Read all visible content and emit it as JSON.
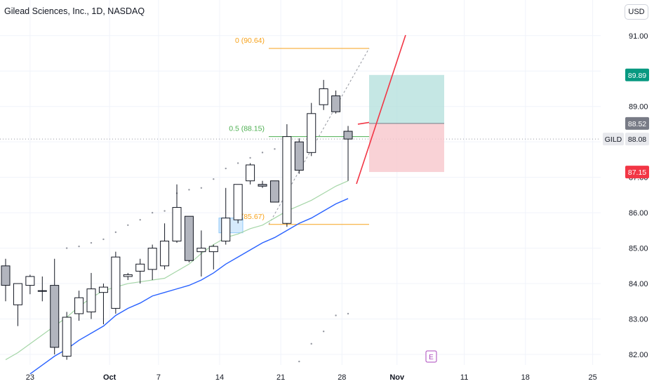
{
  "header": {
    "title": "Gilead Sciences, Inc., 1D, NASDAQ",
    "currency": "USD"
  },
  "price_tags": [
    {
      "id": "target",
      "label": "89.89",
      "bg": "#089981",
      "fg": "#ffffff"
    },
    {
      "id": "entry",
      "label": "88.52",
      "bg": "#787b86",
      "fg": "#ffffff"
    },
    {
      "id": "symbol",
      "label": "GILD",
      "bg": "#e8e9ed",
      "fg": "#131722"
    },
    {
      "id": "last",
      "label": "88.08",
      "bg": "#e8e9ed",
      "fg": "#131722"
    },
    {
      "id": "stop",
      "label": "87.15",
      "bg": "#f23645",
      "fg": "#ffffff"
    }
  ],
  "event_marker": "E",
  "chart_data": {
    "type": "candlestick",
    "ylim": [
      81.75,
      91.15
    ],
    "y_ticks": [
      "82.00",
      "83.00",
      "84.00",
      "85.00",
      "86.00",
      "87.00",
      "88.00",
      "89.00",
      "89.89",
      "91.00"
    ],
    "x_ticks": [
      "23",
      "Oct",
      "7",
      "14",
      "21",
      "28",
      "Nov",
      "11",
      "18",
      "25"
    ],
    "candles": [
      {
        "o": 84.5,
        "h": 84.7,
        "l": 83.5,
        "c": 83.95
      },
      {
        "o": 83.4,
        "h": 84.0,
        "l": 82.8,
        "c": 84.0
      },
      {
        "o": 83.95,
        "h": 84.25,
        "l": 83.7,
        "c": 84.2
      },
      {
        "o": 83.8,
        "h": 84.2,
        "l": 83.5,
        "c": 83.8
      },
      {
        "o": 83.95,
        "h": 84.7,
        "l": 82.0,
        "c": 82.2
      },
      {
        "o": 81.95,
        "h": 83.2,
        "l": 81.85,
        "c": 83.05
      },
      {
        "o": 83.15,
        "h": 83.8,
        "l": 82.95,
        "c": 83.6
      },
      {
        "o": 83.2,
        "h": 84.3,
        "l": 83.0,
        "c": 83.85
      },
      {
        "o": 83.75,
        "h": 84.0,
        "l": 82.85,
        "c": 83.9
      },
      {
        "o": 83.3,
        "h": 84.9,
        "l": 83.15,
        "c": 84.75
      },
      {
        "o": 84.2,
        "h": 84.3,
        "l": 84.1,
        "c": 84.25
      },
      {
        "o": 84.35,
        "h": 84.7,
        "l": 84.0,
        "c": 84.55
      },
      {
        "o": 84.4,
        "h": 85.1,
        "l": 84.1,
        "c": 85.0
      },
      {
        "o": 84.5,
        "h": 85.7,
        "l": 84.4,
        "c": 85.2
      },
      {
        "o": 85.2,
        "h": 86.8,
        "l": 85.15,
        "c": 86.15
      },
      {
        "o": 85.9,
        "h": 85.9,
        "l": 84.6,
        "c": 84.65
      },
      {
        "o": 84.9,
        "h": 85.5,
        "l": 84.2,
        "c": 85.0
      },
      {
        "o": 84.9,
        "h": 85.1,
        "l": 84.4,
        "c": 85.05
      },
      {
        "o": 85.2,
        "h": 86.7,
        "l": 85.1,
        "c": 85.85
      },
      {
        "o": 85.8,
        "h": 86.8,
        "l": 85.7,
        "c": 86.8
      },
      {
        "o": 86.9,
        "h": 87.4,
        "l": 86.8,
        "c": 87.35
      },
      {
        "o": 86.8,
        "h": 86.9,
        "l": 86.7,
        "c": 86.75
      },
      {
        "o": 86.9,
        "h": 86.9,
        "l": 86.3,
        "c": 86.3
      },
      {
        "o": 85.7,
        "h": 88.5,
        "l": 85.6,
        "c": 88.15
      },
      {
        "o": 88.0,
        "h": 88.1,
        "l": 87.1,
        "c": 87.2
      },
      {
        "o": 87.7,
        "h": 89.1,
        "l": 87.6,
        "c": 88.8
      },
      {
        "o": 89.05,
        "h": 89.75,
        "l": 88.9,
        "c": 89.5
      },
      {
        "o": 89.3,
        "h": 89.45,
        "l": 88.8,
        "c": 88.85
      },
      {
        "o": 88.3,
        "h": 88.45,
        "l": 86.9,
        "c": 88.08
      }
    ],
    "ema_fast": [
      81.85,
      82.05,
      82.3,
      82.55,
      82.8,
      83.05,
      83.35,
      83.6,
      83.8,
      83.9,
      84.0,
      84.05,
      84.1,
      84.15,
      84.35,
      84.55,
      84.85,
      85.1,
      85.3,
      85.4,
      85.55,
      85.65,
      85.85,
      86.05,
      86.2,
      86.35,
      86.55,
      86.75,
      86.9
    ],
    "ema_slow": [
      81.45,
      81.7,
      81.95,
      82.15,
      82.4,
      82.6,
      82.8,
      83.1,
      83.3,
      83.45,
      83.65,
      83.75,
      83.85,
      83.95,
      84.1,
      84.3,
      84.55,
      84.75,
      84.95,
      85.15,
      85.3,
      85.5,
      85.7,
      85.85,
      86.05,
      86.25,
      86.4
    ],
    "psar": [
      [
        5,
        85.0
      ],
      [
        6,
        85.05
      ],
      [
        7,
        85.15
      ],
      [
        8,
        85.25
      ],
      [
        9,
        85.45
      ],
      [
        10,
        85.65
      ],
      [
        11,
        85.8
      ],
      [
        12,
        86.0
      ],
      [
        13,
        86.05
      ],
      [
        14,
        86.55
      ],
      [
        15,
        86.65
      ],
      [
        16,
        86.7
      ],
      [
        17,
        86.95
      ],
      [
        18,
        87.25
      ],
      [
        19,
        87.4
      ],
      [
        20,
        87.55
      ],
      [
        21,
        87.7
      ],
      [
        22,
        87.8
      ],
      [
        24,
        81.8
      ],
      [
        25,
        82.3
      ],
      [
        26,
        82.65
      ],
      [
        27,
        83.1
      ],
      [
        28,
        83.15
      ]
    ],
    "fibonacci": [
      {
        "label": "0 (90.64)",
        "value": 90.64
      },
      {
        "label": "0.5 (88.15)",
        "value": 88.15
      },
      {
        "label": "1 (85.67)",
        "value": 85.67
      }
    ],
    "position": {
      "entry": 88.52,
      "target": 89.89,
      "stop": 87.15
    },
    "last_price": 88.08,
    "colors": {
      "up": "#ffffff",
      "down": "#b2b5be",
      "border": "#131722",
      "ema_fast": "#a5d6a7",
      "ema_slow": "#2962ff",
      "fib": "#f7a21b",
      "fib_mid": "#4caf50",
      "target_zone": "#b2dfdb",
      "stop_zone": "#f8c7cc",
      "arrow": "#f23645"
    }
  }
}
